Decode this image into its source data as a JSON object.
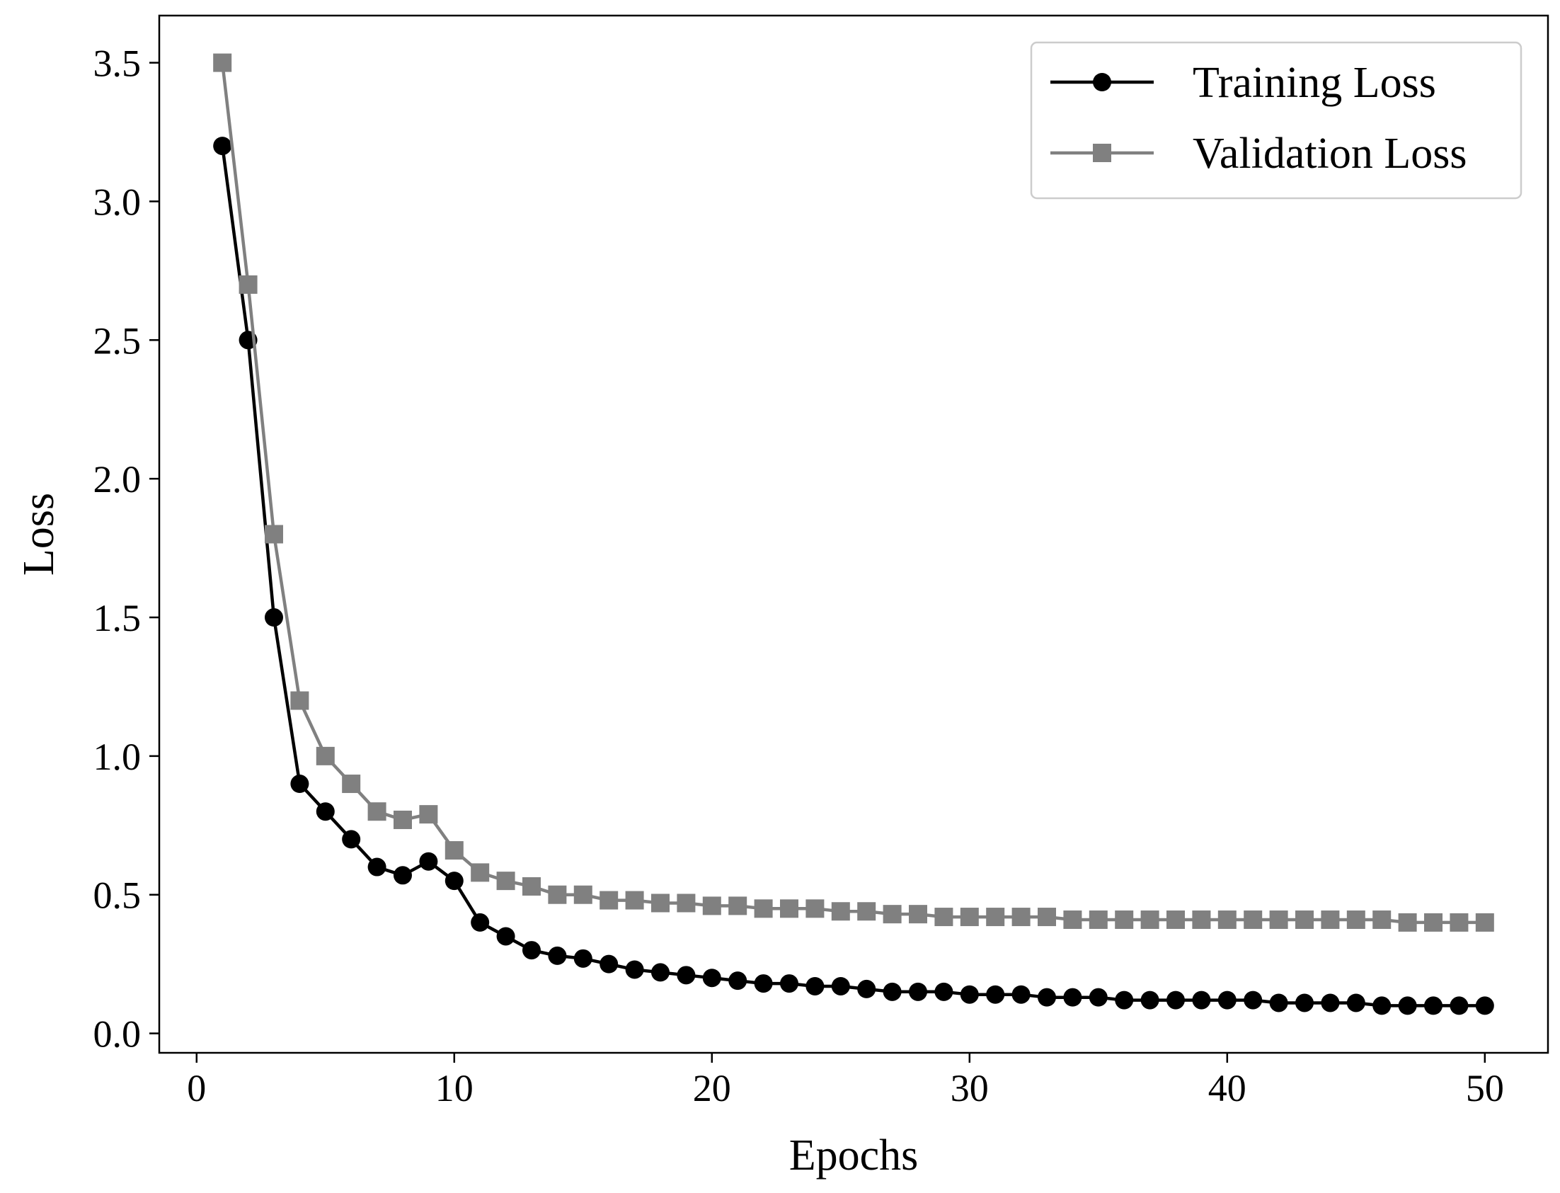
{
  "chart_data": {
    "type": "line",
    "title": "",
    "xlabel": "Epochs",
    "ylabel": "Loss",
    "xlim": [
      -1.45,
      52.45
    ],
    "ylim": [
      -0.07,
      3.67
    ],
    "x_ticks": [
      0,
      10,
      20,
      30,
      40,
      50
    ],
    "x_tick_labels": [
      "0",
      "10",
      "20",
      "30",
      "40",
      "50"
    ],
    "y_ticks": [
      0.0,
      0.5,
      1.0,
      1.5,
      2.0,
      2.5,
      3.0,
      3.5
    ],
    "y_tick_labels": [
      "0.0",
      "0.5",
      "1.0",
      "1.5",
      "2.0",
      "2.5",
      "3.0",
      "3.5"
    ],
    "grid": false,
    "legend_position": "top-right",
    "x": [
      1,
      2,
      3,
      4,
      5,
      6,
      7,
      8,
      9,
      10,
      11,
      12,
      13,
      14,
      15,
      16,
      17,
      18,
      19,
      20,
      21,
      22,
      23,
      24,
      25,
      26,
      27,
      28,
      29,
      30,
      31,
      32,
      33,
      34,
      35,
      36,
      37,
      38,
      39,
      40,
      41,
      42,
      43,
      44,
      45,
      46,
      47,
      48,
      49,
      50
    ],
    "series": [
      {
        "name": "Training Loss",
        "color": "#000000",
        "marker": "circle",
        "values": [
          3.2,
          2.5,
          1.5,
          0.9,
          0.8,
          0.7,
          0.6,
          0.57,
          0.62,
          0.55,
          0.4,
          0.35,
          0.3,
          0.28,
          0.27,
          0.25,
          0.23,
          0.22,
          0.21,
          0.2,
          0.19,
          0.18,
          0.18,
          0.17,
          0.17,
          0.16,
          0.15,
          0.15,
          0.15,
          0.14,
          0.14,
          0.14,
          0.13,
          0.13,
          0.13,
          0.12,
          0.12,
          0.12,
          0.12,
          0.12,
          0.12,
          0.11,
          0.11,
          0.11,
          0.11,
          0.1,
          0.1,
          0.1,
          0.1,
          0.1
        ]
      },
      {
        "name": "Validation Loss",
        "color": "#808080",
        "marker": "square",
        "values": [
          3.5,
          2.7,
          1.8,
          1.2,
          1.0,
          0.9,
          0.8,
          0.77,
          0.79,
          0.66,
          0.58,
          0.55,
          0.53,
          0.5,
          0.5,
          0.48,
          0.48,
          0.47,
          0.47,
          0.46,
          0.46,
          0.45,
          0.45,
          0.45,
          0.44,
          0.44,
          0.43,
          0.43,
          0.42,
          0.42,
          0.42,
          0.42,
          0.42,
          0.41,
          0.41,
          0.41,
          0.41,
          0.41,
          0.41,
          0.41,
          0.41,
          0.41,
          0.41,
          0.41,
          0.41,
          0.41,
          0.4,
          0.4,
          0.4,
          0.4
        ]
      }
    ]
  }
}
